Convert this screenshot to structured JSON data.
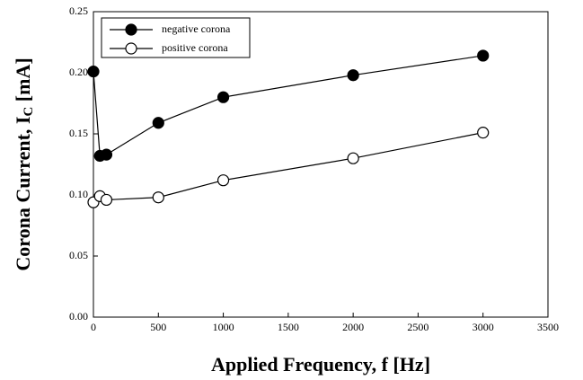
{
  "chart_data": {
    "type": "line",
    "xlabel": "Applied Frequency, f [Hz]",
    "ylabel": [
      "Corona Current, I",
      "C",
      " [mA]"
    ],
    "x": [
      0,
      50,
      100,
      500,
      1000,
      2000,
      3000
    ],
    "series": [
      {
        "name": "negative corona",
        "color": "#000000",
        "marker_fill": "#000000",
        "values": [
          0.201,
          0.132,
          0.133,
          0.159,
          0.18,
          0.198,
          0.214
        ]
      },
      {
        "name": "positive corona",
        "color": "#000000",
        "marker_fill": "#ffffff",
        "values": [
          0.094,
          0.099,
          0.096,
          0.098,
          0.112,
          0.13,
          0.151
        ]
      }
    ],
    "xlim": [
      0,
      3500
    ],
    "xticks": [
      0,
      500,
      1000,
      1500,
      2000,
      2500,
      3000,
      3500
    ],
    "ylim": [
      0,
      0.25
    ],
    "yticks": [
      {
        "value": 0,
        "label": "0.00"
      },
      {
        "value": 0.05,
        "label": "0.05"
      },
      {
        "value": 0.1,
        "label": "0.10"
      },
      {
        "value": 0.15,
        "label": "0.15"
      },
      {
        "value": 0.2,
        "label": "0.20"
      },
      {
        "value": 0.25,
        "label": "0.25"
      }
    ],
    "grid": false,
    "legend": "upper left"
  }
}
